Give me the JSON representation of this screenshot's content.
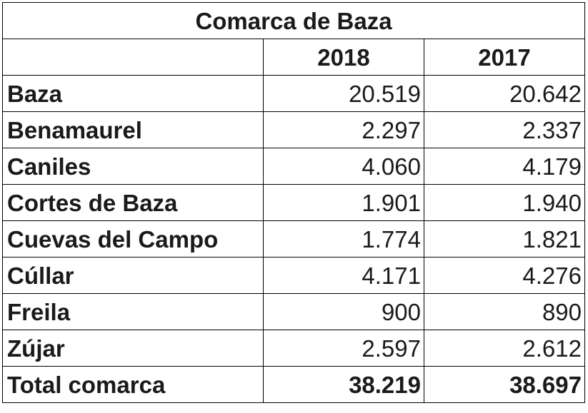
{
  "table": {
    "title": "Comarca de Baza",
    "header": [
      "",
      "2018",
      "2017"
    ],
    "rows": [
      {
        "name": "Baza",
        "y2018": "20.519",
        "y2017": "20.642"
      },
      {
        "name": "Benamaurel",
        "y2018": "2.297",
        "y2017": "2.337"
      },
      {
        "name": "Caniles",
        "y2018": "4.060",
        "y2017": "4.179"
      },
      {
        "name": "Cortes de Baza",
        "y2018": "1.901",
        "y2017": "1.940"
      },
      {
        "name": "Cuevas del Campo",
        "y2018": "1.774",
        "y2017": "1.821"
      },
      {
        "name": "Cúllar",
        "y2018": "4.171",
        "y2017": "4.276"
      },
      {
        "name": "Freila",
        "y2018": "900",
        "y2017": "890"
      },
      {
        "name": "Zújar",
        "y2018": "2.597",
        "y2017": "2.612"
      }
    ],
    "total": {
      "name": "Total comarca",
      "y2018": "38.219",
      "y2017": "38.697"
    }
  }
}
